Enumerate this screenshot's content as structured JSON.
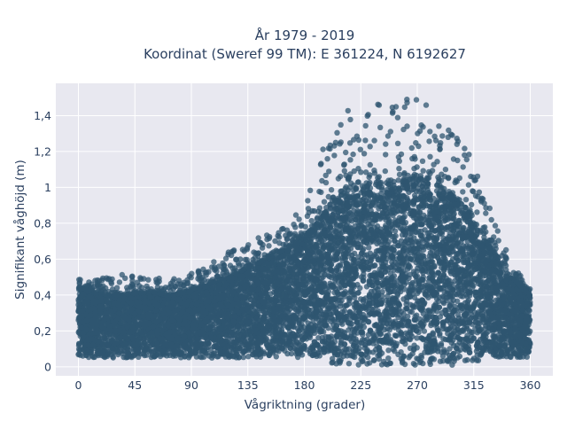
{
  "chart_data": {
    "type": "scatter",
    "title": "År 1979 - 2019",
    "subtitle": "Koordinat (Sweref 99 TM): E 361224, N 6192627",
    "xlabel": "Vågriktning (grader)",
    "ylabel": "Signifikant våghöjd (m)",
    "xlim": [
      -18,
      378
    ],
    "ylim": [
      -0.05,
      1.58
    ],
    "x_ticks": [
      0,
      45,
      90,
      135,
      180,
      225,
      270,
      315,
      360
    ],
    "x_tick_labels": [
      "0",
      "45",
      "90",
      "135",
      "180",
      "225",
      "270",
      "315",
      "360"
    ],
    "y_ticks": [
      0,
      0.2,
      0.4,
      0.6,
      0.8,
      1.0,
      1.2,
      1.4
    ],
    "y_tick_labels": [
      "0",
      "0,2",
      "0,4",
      "0,6",
      "0,8",
      "1",
      "1,2",
      "1,4"
    ],
    "grid": true,
    "marker_color": "#2f5570",
    "background_color": "#e8e8f0",
    "envelope": {
      "direction": [
        0,
        10,
        20,
        30,
        45,
        60,
        75,
        90,
        100,
        110,
        120,
        135,
        150,
        165,
        180,
        190,
        200,
        210,
        225,
        240,
        250,
        260,
        270,
        280,
        290,
        300,
        310,
        315,
        325,
        335,
        345,
        355,
        360
      ],
      "typical_max_height": [
        0.44,
        0.42,
        0.4,
        0.4,
        0.41,
        0.41,
        0.4,
        0.42,
        0.45,
        0.48,
        0.5,
        0.55,
        0.6,
        0.66,
        0.72,
        0.8,
        0.9,
        0.98,
        1.0,
        1.02,
        1.03,
        1.04,
        1.05,
        1.04,
        1.0,
        0.95,
        0.88,
        0.82,
        0.7,
        0.6,
        0.5,
        0.43,
        0.4
      ],
      "outlier_max_height": [
        0.49,
        0.47,
        0.52,
        0.54,
        0.52,
        0.49,
        0.5,
        0.52,
        0.55,
        0.6,
        0.65,
        0.7,
        0.74,
        0.78,
        0.9,
        1.1,
        1.35,
        1.42,
        1.45,
        1.48,
        1.5,
        1.5,
        1.52,
        1.5,
        1.4,
        1.3,
        1.2,
        1.15,
        0.95,
        0.75,
        0.58,
        0.48,
        0.45
      ],
      "min_height": 0.05
    }
  }
}
